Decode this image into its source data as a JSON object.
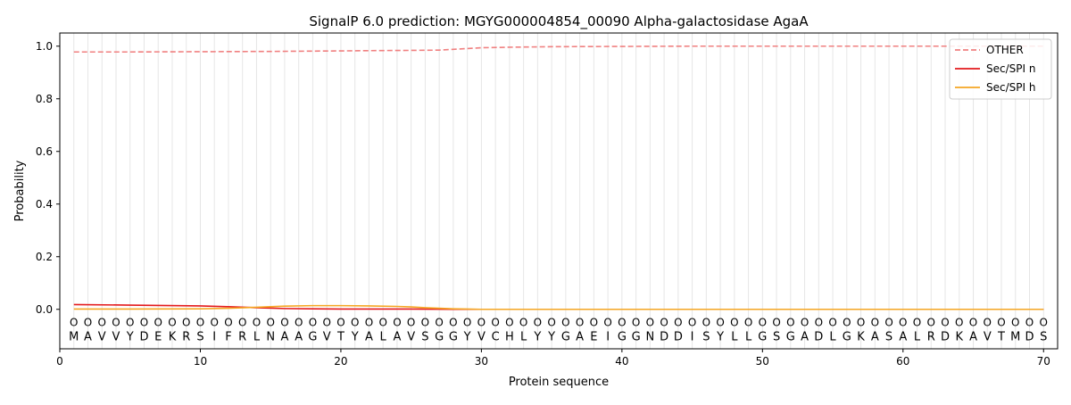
{
  "chart_data": {
    "type": "line",
    "title": "SignalP 6.0 prediction: MGYG000004854_00090 Alpha-galactosidase AgaA",
    "xlabel": "Protein sequence",
    "ylabel": "Probability",
    "xlim": [
      0,
      71
    ],
    "ylim": [
      -0.15,
      1.05
    ],
    "x_ticks": [
      0,
      10,
      20,
      30,
      40,
      50,
      60,
      70
    ],
    "y_ticks": [
      0.0,
      0.2,
      0.4,
      0.6,
      0.8,
      1.0
    ],
    "grid": "vertical lines at each residue",
    "legend_position": "top-right",
    "sequence": [
      "M",
      "A",
      "V",
      "V",
      "Y",
      "D",
      "E",
      "K",
      "R",
      "S",
      "I",
      "F",
      "R",
      "L",
      "N",
      "A",
      "A",
      "G",
      "V",
      "T",
      "Y",
      "A",
      "L",
      "A",
      "V",
      "S",
      "G",
      "G",
      "Y",
      "V",
      "C",
      "H",
      "L",
      "Y",
      "Y",
      "G",
      "A",
      "E",
      "I",
      "G",
      "G",
      "N",
      "D",
      "D",
      "I",
      "S",
      "Y",
      "L",
      "L",
      "G",
      "S",
      "G",
      "A",
      "D",
      "L",
      "G",
      "K",
      "A",
      "S",
      "A",
      "L",
      "R",
      "D",
      "K",
      "A",
      "V",
      "T",
      "M",
      "D",
      "S"
    ],
    "region_labels": [
      "O",
      "O",
      "O",
      "O",
      "O",
      "O",
      "O",
      "O",
      "O",
      "O",
      "O",
      "O",
      "O",
      "O",
      "O",
      "O",
      "O",
      "O",
      "O",
      "O",
      "O",
      "O",
      "O",
      "O",
      "O",
      "O",
      "O",
      "O",
      "O",
      "O",
      "O",
      "O",
      "O",
      "O",
      "O",
      "O",
      "O",
      "O",
      "O",
      "O",
      "O",
      "O",
      "O",
      "O",
      "O",
      "O",
      "O",
      "O",
      "O",
      "O",
      "O",
      "O",
      "O",
      "O",
      "O",
      "O",
      "O",
      "O",
      "O",
      "O",
      "O",
      "O",
      "O",
      "O",
      "O",
      "O",
      "O",
      "O",
      "O",
      "O"
    ],
    "series": [
      {
        "name": "OTHER",
        "color": "#f08080",
        "style": "dashed",
        "x": [
          1,
          5,
          10,
          15,
          20,
          22,
          25,
          27,
          28,
          29,
          30,
          32,
          35,
          40,
          45,
          50,
          55,
          60,
          65,
          70
        ],
        "values": [
          0.978,
          0.978,
          0.979,
          0.98,
          0.982,
          0.983,
          0.984,
          0.985,
          0.988,
          0.991,
          0.994,
          0.996,
          0.998,
          0.999,
          1.0,
          1.0,
          1.0,
          1.0,
          1.0,
          1.0
        ]
      },
      {
        "name": "Sec/SPI n",
        "color": "#e31a1c",
        "style": "solid",
        "x": [
          1,
          5,
          10,
          12,
          14,
          16,
          18,
          20,
          25,
          28,
          30,
          35,
          40,
          50,
          60,
          70
        ],
        "values": [
          0.018,
          0.016,
          0.013,
          0.01,
          0.006,
          0.003,
          0.002,
          0.001,
          0.001,
          0.0,
          0.0,
          0.0,
          0.0,
          0.0,
          0.0,
          0.0
        ]
      },
      {
        "name": "Sec/SPI h",
        "color": "#f5a623",
        "style": "solid",
        "x": [
          1,
          5,
          10,
          12,
          14,
          16,
          18,
          20,
          22,
          24,
          25,
          26,
          27,
          28,
          29,
          30,
          35,
          40,
          50,
          60,
          70
        ],
        "values": [
          0.001,
          0.001,
          0.002,
          0.004,
          0.008,
          0.012,
          0.014,
          0.014,
          0.013,
          0.011,
          0.009,
          0.006,
          0.004,
          0.002,
          0.001,
          0.0,
          0.0,
          0.0,
          0.0,
          0.0,
          0.0
        ]
      }
    ]
  }
}
